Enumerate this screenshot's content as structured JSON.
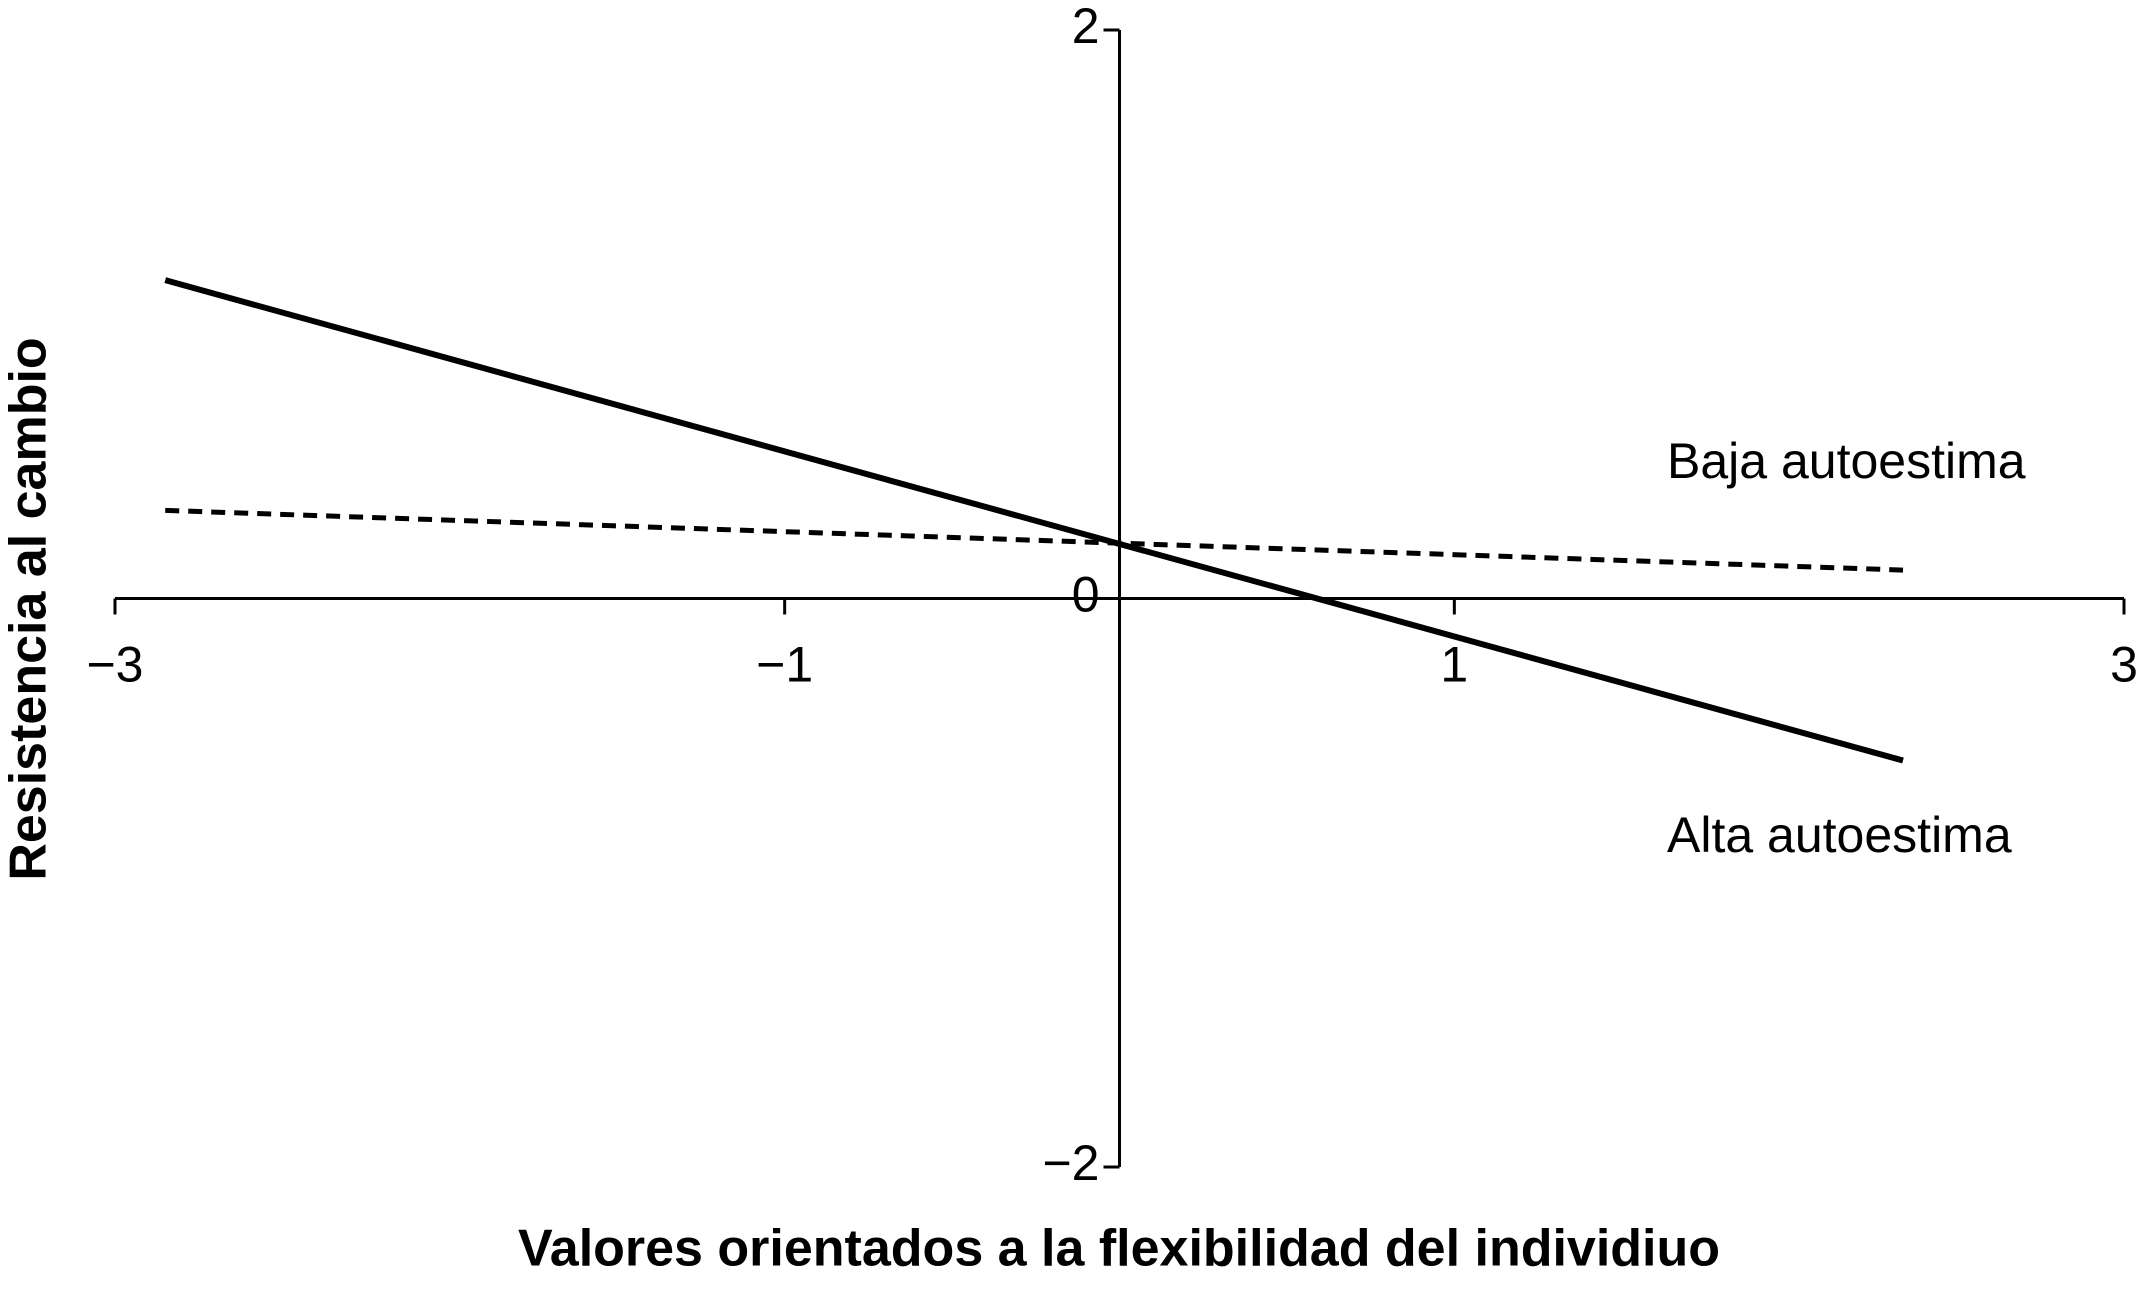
{
  "chart_data": {
    "type": "line",
    "xlabel": "Valores orientados a la flexibilidad del individiuo",
    "ylabel": "Resistencia al cambio",
    "x": [
      -2.85,
      2.34
    ],
    "series": [
      {
        "name": "Alta autoestima",
        "color": "#000000",
        "linestyle": "solid",
        "values": [
          1.12,
          -0.57
        ]
      },
      {
        "name": "Baja autoestima",
        "color": "#000000",
        "linestyle": "dashed",
        "values": [
          0.31,
          0.1
        ]
      }
    ],
    "xlim": [
      -3,
      3
    ],
    "xticks": [
      {
        "value": -3,
        "label": "−3"
      },
      {
        "value": -1,
        "label": "−1"
      },
      1,
      3
    ],
    "ylim": [
      -2,
      2
    ],
    "yticks": [
      2,
      0,
      {
        "value": -2,
        "label": "−2"
      }
    ]
  }
}
